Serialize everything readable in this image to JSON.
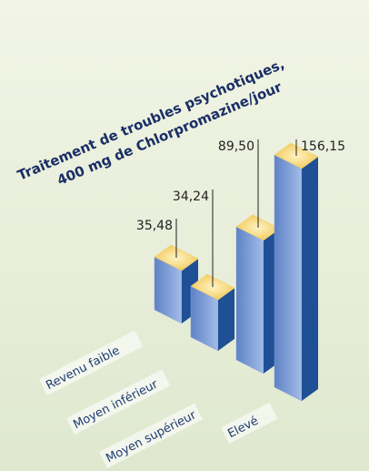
{
  "chart_data": {
    "type": "bar3d",
    "title": "Traitement de troubles psychotiques,",
    "subtitle": "400 mg de Chlorpromazine/jour",
    "categories": [
      "Revenu faible",
      "Moyen inférieur",
      "Moyen supérieur",
      "Elevé"
    ],
    "values": [
      35.48,
      34.24,
      89.5,
      156.15
    ],
    "value_labels": [
      "35,48",
      "34,24",
      "89,50",
      "156,15"
    ],
    "colors": {
      "front": "#7f9fd6",
      "side": "#1f4f95",
      "top": "#f3cf6a"
    }
  }
}
